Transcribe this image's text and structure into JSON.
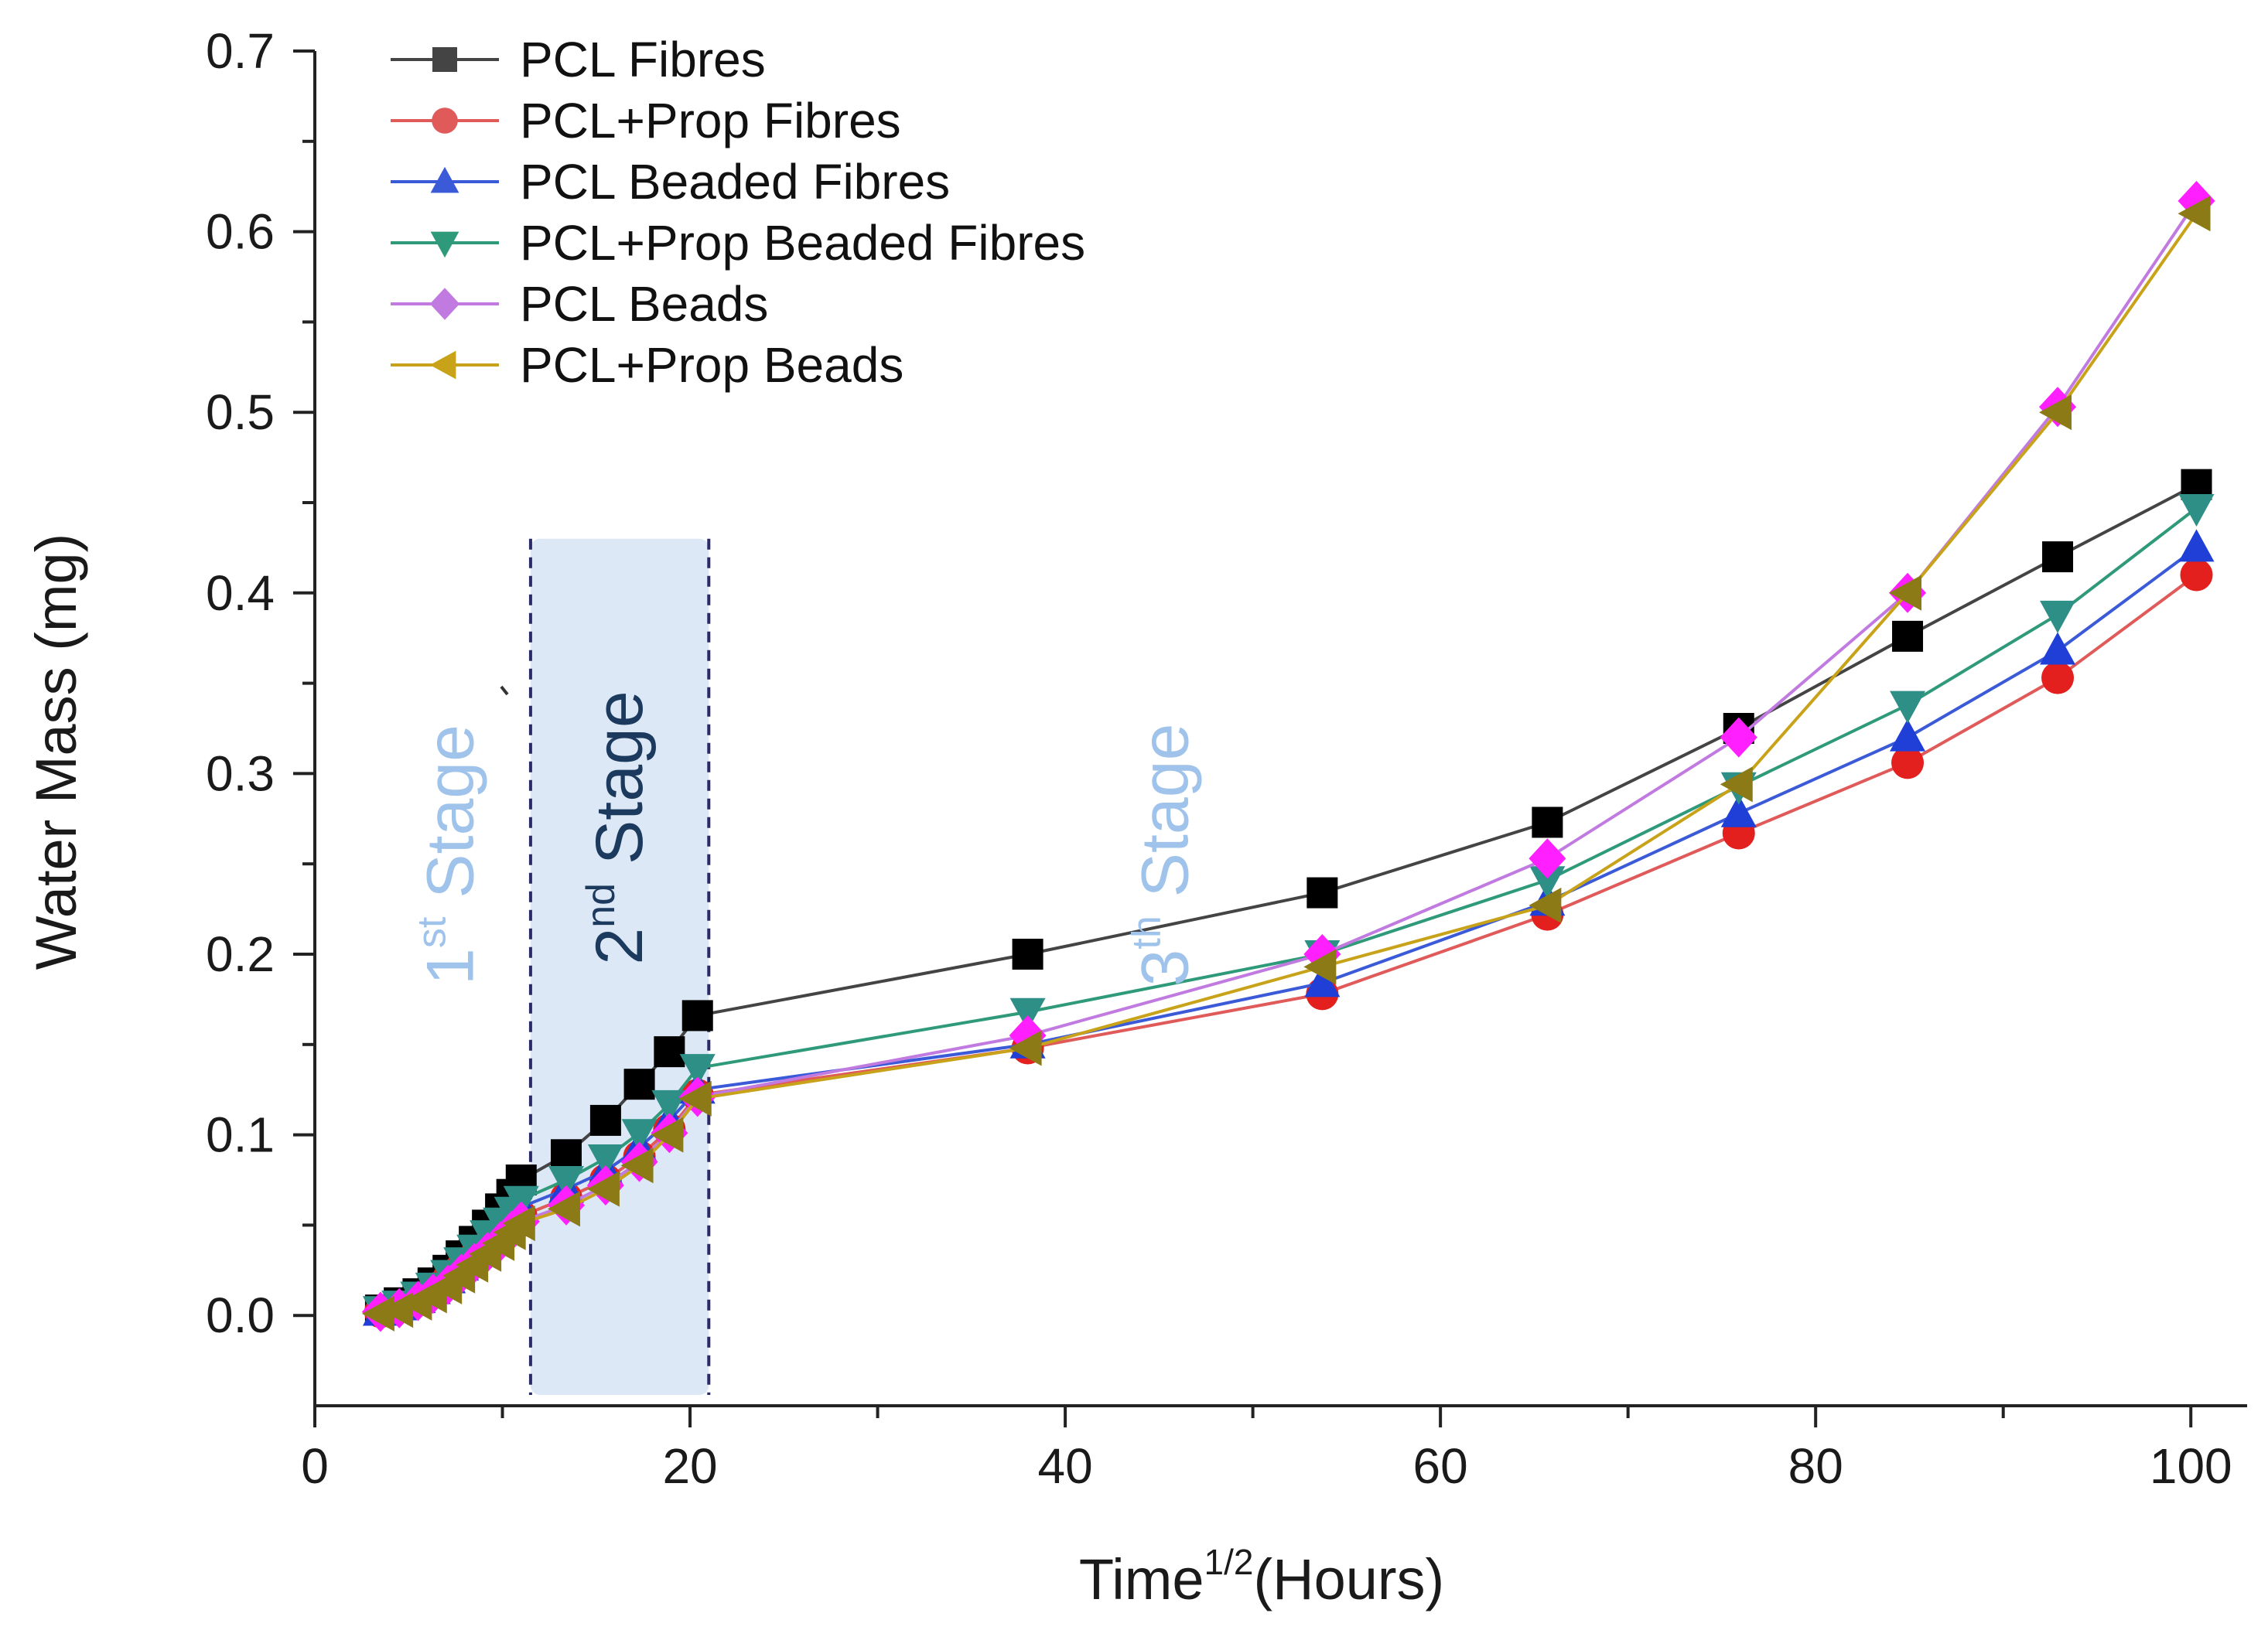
{
  "chart_data": {
    "type": "line",
    "title": "",
    "xlabel": "Time",
    "xlabel_superscript": "1/2",
    "xlabel_suffix": "(Hours)",
    "ylabel": "Water Mass (mg)",
    "xlim": [
      0,
      103
    ],
    "ylim": [
      -0.05,
      0.7
    ],
    "xticks": [
      0,
      20,
      40,
      60,
      80,
      100
    ],
    "yticks": [
      0.0,
      0.1,
      0.2,
      0.3,
      0.4,
      0.5,
      0.6,
      0.7
    ],
    "xtick_labels": [
      "0",
      "20",
      "40",
      "60",
      "80",
      "100"
    ],
    "ytick_labels": [
      "0.0",
      "0.1",
      "0.2",
      "0.3",
      "0.4",
      "0.5",
      "0.6",
      "0.7"
    ],
    "grid": false,
    "legend_position": "top-left",
    "stage_region": {
      "x_start": 11.5,
      "x_end": 21
    },
    "stage_labels": [
      {
        "num": "1",
        "sup": "st",
        "text": " Stage",
        "x": 7.2,
        "y": 0.255,
        "color": "#9fc3ea"
      },
      {
        "num": "2",
        "sup": "nd",
        "text": " Stage",
        "x": 16.2,
        "y": 0.27,
        "color": "#1c3a5e"
      },
      {
        "num": "3",
        "sup": "th",
        "text": " Stage",
        "x": 45.3,
        "y": 0.255,
        "color": "#9fc3ea"
      }
    ],
    "series": [
      {
        "name": "PCL Fibres",
        "color": "#000000",
        "line_color": "#444444",
        "marker": "square",
        "x": [
          3.5,
          4.5,
          5.5,
          6.3,
          7.1,
          7.8,
          8.5,
          9.2,
          9.9,
          10.5,
          11.0,
          13.4,
          15.5,
          17.3,
          18.9,
          20.4,
          38,
          53.7,
          65.7,
          75.9,
          84.9,
          92.9,
          100.3
        ],
        "y": [
          0.003,
          0.007,
          0.012,
          0.018,
          0.025,
          0.033,
          0.041,
          0.05,
          0.059,
          0.067,
          0.075,
          0.089,
          0.108,
          0.128,
          0.146,
          0.166,
          0.2,
          0.234,
          0.273,
          0.325,
          0.376,
          0.42,
          0.46
        ]
      },
      {
        "name": "PCL+Prop Fibres",
        "color": "#e3201e",
        "line_color": "#e05a5a",
        "marker": "circle",
        "x": [
          3.5,
          4.5,
          5.5,
          6.3,
          7.1,
          7.8,
          8.5,
          9.2,
          9.9,
          10.5,
          11.0,
          13.4,
          15.5,
          17.3,
          18.9,
          20.4,
          38,
          53.7,
          65.7,
          75.9,
          84.9,
          92.9,
          100.3
        ],
        "y": [
          0.002,
          0.005,
          0.009,
          0.014,
          0.02,
          0.026,
          0.032,
          0.038,
          0.044,
          0.05,
          0.055,
          0.065,
          0.075,
          0.088,
          0.103,
          0.122,
          0.148,
          0.178,
          0.222,
          0.267,
          0.306,
          0.353,
          0.41
        ]
      },
      {
        "name": "PCL Beaded Fibres",
        "color": "#1f3fd6",
        "line_color": "#3a5ad8",
        "marker": "triangle-up",
        "x": [
          3.5,
          4.5,
          5.5,
          6.3,
          7.1,
          7.8,
          8.5,
          9.2,
          9.9,
          10.5,
          11.0,
          13.4,
          15.5,
          17.3,
          18.9,
          20.4,
          38,
          53.7,
          65.7,
          75.9,
          84.9,
          92.9,
          100.3
        ],
        "y": [
          0.002,
          0.005,
          0.009,
          0.014,
          0.02,
          0.027,
          0.034,
          0.041,
          0.048,
          0.054,
          0.06,
          0.07,
          0.08,
          0.093,
          0.108,
          0.125,
          0.15,
          0.184,
          0.229,
          0.278,
          0.32,
          0.368,
          0.425
        ]
      },
      {
        "name": "PCL+Prop Beaded Fibres",
        "color": "#2d8f86",
        "line_color": "#2f9a7a",
        "marker": "triangle-down",
        "x": [
          3.5,
          4.5,
          5.5,
          6.3,
          7.1,
          7.8,
          8.5,
          9.2,
          9.9,
          10.5,
          11.0,
          13.4,
          15.5,
          17.3,
          18.9,
          20.4,
          38,
          53.7,
          65.7,
          75.9,
          84.9,
          92.9,
          100.3
        ],
        "y": [
          0.003,
          0.006,
          0.011,
          0.016,
          0.023,
          0.03,
          0.037,
          0.045,
          0.052,
          0.058,
          0.064,
          0.075,
          0.087,
          0.101,
          0.117,
          0.137,
          0.168,
          0.2,
          0.241,
          0.293,
          0.338,
          0.388,
          0.447
        ]
      },
      {
        "name": "PCL Beads",
        "color": "#ff1fff",
        "line_color": "#c17be0",
        "marker": "diamond",
        "x": [
          3.5,
          4.5,
          5.5,
          6.3,
          7.1,
          7.8,
          8.5,
          9.2,
          9.9,
          10.5,
          11.0,
          13.4,
          15.5,
          17.3,
          18.9,
          20.4,
          38,
          53.7,
          65.7,
          75.9,
          84.9,
          92.9,
          100.3
        ],
        "y": [
          0.002,
          0.004,
          0.008,
          0.012,
          0.017,
          0.023,
          0.029,
          0.035,
          0.041,
          0.047,
          0.052,
          0.061,
          0.072,
          0.085,
          0.101,
          0.121,
          0.155,
          0.2,
          0.253,
          0.32,
          0.4,
          0.503,
          0.617
        ]
      },
      {
        "name": "PCL+Prop Beads",
        "color": "#8b7a16",
        "line_color": "#c8a31a",
        "marker": "triangle-left",
        "x": [
          3.5,
          4.5,
          5.5,
          6.3,
          7.1,
          7.8,
          8.5,
          9.2,
          9.9,
          10.5,
          11.0,
          13.4,
          15.5,
          17.3,
          18.9,
          20.4,
          38,
          53.7,
          65.7,
          75.9,
          84.9,
          92.9,
          100.3
        ],
        "y": [
          0.001,
          0.003,
          0.007,
          0.011,
          0.016,
          0.022,
          0.028,
          0.034,
          0.04,
          0.046,
          0.051,
          0.059,
          0.07,
          0.083,
          0.1,
          0.12,
          0.148,
          0.193,
          0.227,
          0.294,
          0.4,
          0.5,
          0.61
        ]
      }
    ]
  }
}
